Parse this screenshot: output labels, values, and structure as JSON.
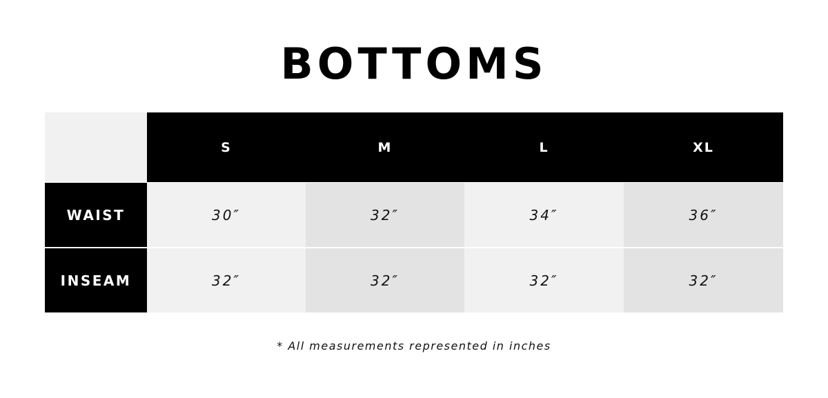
{
  "title": "BOTTOMS",
  "table": {
    "columns": [
      "S",
      "M",
      "L",
      "XL"
    ],
    "rows": [
      {
        "label": "WAIST",
        "values": [
          "30″",
          "32″",
          "34″",
          "36″"
        ]
      },
      {
        "label": "INSEAM",
        "values": [
          "32″",
          "32″",
          "32″",
          "32″"
        ]
      }
    ]
  },
  "footnote": "* All measurements represented in inches",
  "colors": {
    "header_bg": "#000000",
    "cell_light": "#f1f1f1",
    "cell_dark": "#e3e3e3"
  }
}
